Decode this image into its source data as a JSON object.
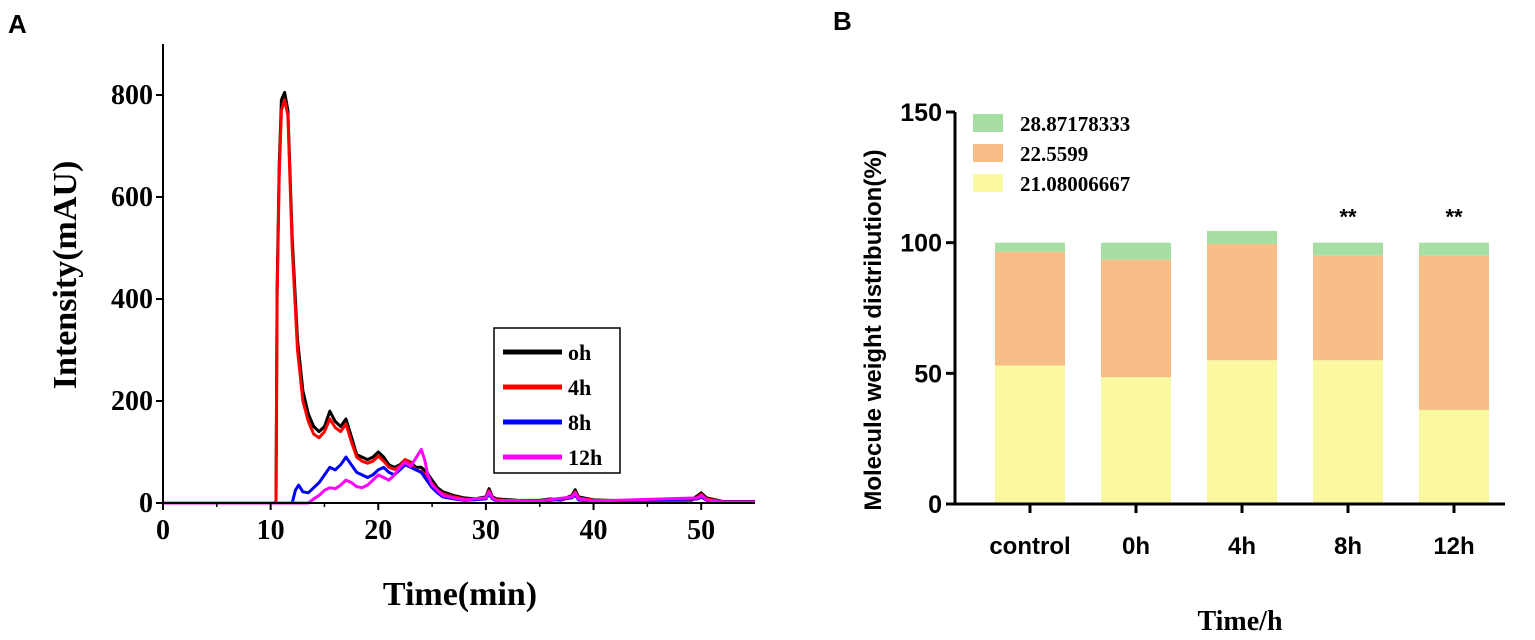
{
  "panels": {
    "a_label": "A",
    "b_label": "B"
  },
  "chart_data": [
    {
      "type": "line",
      "panel": "A",
      "title": "",
      "xlabel": "Time(min)",
      "ylabel": "Intensity(mAU)",
      "xlim": [
        0,
        55
      ],
      "ylim": [
        0,
        900
      ],
      "xticks": [
        "0",
        "10",
        "20",
        "30",
        "40",
        "50"
      ],
      "yticks": [
        "0",
        "200",
        "400",
        "600",
        "800"
      ],
      "grid": false,
      "legend_position": "center-right",
      "series": [
        {
          "name": "oh",
          "color": "#000000",
          "points": [
            [
              0,
              0
            ],
            [
              10.3,
              0
            ],
            [
              10.5,
              3
            ],
            [
              10.6,
              420
            ],
            [
              10.8,
              660
            ],
            [
              11.0,
              790
            ],
            [
              11.3,
              805
            ],
            [
              11.6,
              770
            ],
            [
              12.0,
              520
            ],
            [
              12.5,
              320
            ],
            [
              13.0,
              220
            ],
            [
              13.5,
              175
            ],
            [
              14.0,
              150
            ],
            [
              14.5,
              140
            ],
            [
              15.0,
              150
            ],
            [
              15.5,
              180
            ],
            [
              16.0,
              160
            ],
            [
              16.5,
              150
            ],
            [
              17.0,
              165
            ],
            [
              17.5,
              130
            ],
            [
              18.0,
              95
            ],
            [
              18.5,
              90
            ],
            [
              19.0,
              85
            ],
            [
              19.5,
              90
            ],
            [
              20.0,
              100
            ],
            [
              20.5,
              90
            ],
            [
              21.0,
              75
            ],
            [
              21.5,
              70
            ],
            [
              22.0,
              75
            ],
            [
              22.5,
              85
            ],
            [
              23.0,
              80
            ],
            [
              23.5,
              70
            ],
            [
              24.0,
              70
            ],
            [
              24.5,
              60
            ],
            [
              25.0,
              45
            ],
            [
              25.5,
              30
            ],
            [
              26.0,
              22
            ],
            [
              27.0,
              15
            ],
            [
              28.0,
              10
            ],
            [
              29.0,
              8
            ],
            [
              30.0,
              12
            ],
            [
              30.3,
              28
            ],
            [
              30.6,
              12
            ],
            [
              31.0,
              8
            ],
            [
              33.0,
              5
            ],
            [
              35.0,
              5
            ],
            [
              36.0,
              8
            ],
            [
              37.0,
              6
            ],
            [
              38.0,
              15
            ],
            [
              38.3,
              26
            ],
            [
              38.6,
              12
            ],
            [
              40.0,
              6
            ],
            [
              45.0,
              3
            ],
            [
              49.0,
              5
            ],
            [
              49.7,
              15
            ],
            [
              50.0,
              20
            ],
            [
              50.5,
              10
            ],
            [
              52.0,
              3
            ],
            [
              55.0,
              3
            ]
          ]
        },
        {
          "name": "4h",
          "color": "#ff0000",
          "points": [
            [
              0,
              0
            ],
            [
              10.3,
              0
            ],
            [
              10.5,
              3
            ],
            [
              10.6,
              400
            ],
            [
              10.8,
              640
            ],
            [
              11.0,
              770
            ],
            [
              11.3,
              790
            ],
            [
              11.6,
              760
            ],
            [
              12.0,
              500
            ],
            [
              12.5,
              300
            ],
            [
              13.0,
              200
            ],
            [
              13.5,
              160
            ],
            [
              14.0,
              135
            ],
            [
              14.5,
              128
            ],
            [
              15.0,
              140
            ],
            [
              15.5,
              165
            ],
            [
              16.0,
              148
            ],
            [
              16.5,
              140
            ],
            [
              17.0,
              155
            ],
            [
              17.5,
              120
            ],
            [
              18.0,
              90
            ],
            [
              18.5,
              82
            ],
            [
              19.0,
              78
            ],
            [
              19.5,
              82
            ],
            [
              20.0,
              92
            ],
            [
              20.5,
              82
            ],
            [
              21.0,
              70
            ],
            [
              21.5,
              66
            ],
            [
              22.0,
              72
            ],
            [
              22.5,
              85
            ],
            [
              23.0,
              78
            ],
            [
              23.5,
              65
            ],
            [
              24.0,
              62
            ],
            [
              24.5,
              52
            ],
            [
              25.0,
              38
            ],
            [
              25.5,
              25
            ],
            [
              26.0,
              18
            ],
            [
              27.0,
              12
            ],
            [
              28.0,
              8
            ],
            [
              29.0,
              6
            ],
            [
              30.0,
              10
            ],
            [
              30.3,
              24
            ],
            [
              30.6,
              10
            ],
            [
              31.0,
              6
            ],
            [
              33.0,
              4
            ],
            [
              35.0,
              4
            ],
            [
              36.0,
              7
            ],
            [
              37.0,
              5
            ],
            [
              38.0,
              13
            ],
            [
              38.3,
              22
            ],
            [
              38.6,
              10
            ],
            [
              40.0,
              5
            ],
            [
              45.0,
              2
            ],
            [
              49.0,
              4
            ],
            [
              49.7,
              12
            ],
            [
              50.0,
              17
            ],
            [
              50.5,
              8
            ],
            [
              52.0,
              2
            ],
            [
              55.0,
              2
            ]
          ]
        },
        {
          "name": "8h",
          "color": "#0000ff",
          "points": [
            [
              0,
              0
            ],
            [
              12.0,
              0
            ],
            [
              12.3,
              25
            ],
            [
              12.6,
              35
            ],
            [
              13.0,
              22
            ],
            [
              13.5,
              20
            ],
            [
              14.0,
              30
            ],
            [
              14.5,
              40
            ],
            [
              15.0,
              55
            ],
            [
              15.5,
              70
            ],
            [
              16.0,
              65
            ],
            [
              16.5,
              75
            ],
            [
              17.0,
              90
            ],
            [
              17.5,
              75
            ],
            [
              18.0,
              60
            ],
            [
              18.5,
              55
            ],
            [
              19.0,
              50
            ],
            [
              19.5,
              55
            ],
            [
              20.0,
              65
            ],
            [
              20.5,
              70
            ],
            [
              21.0,
              60
            ],
            [
              21.5,
              55
            ],
            [
              22.0,
              65
            ],
            [
              22.5,
              75
            ],
            [
              23.0,
              70
            ],
            [
              23.5,
              65
            ],
            [
              24.0,
              60
            ],
            [
              24.5,
              45
            ],
            [
              25.0,
              30
            ],
            [
              25.5,
              20
            ],
            [
              26.0,
              12
            ],
            [
              27.0,
              8
            ],
            [
              28.0,
              5
            ],
            [
              30.0,
              8
            ],
            [
              30.3,
              18
            ],
            [
              30.6,
              8
            ],
            [
              31.0,
              4
            ],
            [
              35.0,
              3
            ],
            [
              38.0,
              10
            ],
            [
              38.3,
              16
            ],
            [
              38.6,
              6
            ],
            [
              40.0,
              3
            ],
            [
              49.7,
              8
            ],
            [
              50.0,
              12
            ],
            [
              50.5,
              5
            ],
            [
              52.0,
              2
            ],
            [
              55.0,
              2
            ]
          ]
        },
        {
          "name": "12h",
          "color": "#ff00ff",
          "points": [
            [
              0,
              0
            ],
            [
              13.5,
              0
            ],
            [
              14.0,
              8
            ],
            [
              14.5,
              15
            ],
            [
              15.0,
              25
            ],
            [
              15.5,
              30
            ],
            [
              16.0,
              28
            ],
            [
              16.5,
              35
            ],
            [
              17.0,
              45
            ],
            [
              17.5,
              40
            ],
            [
              18.0,
              32
            ],
            [
              18.5,
              30
            ],
            [
              19.0,
              35
            ],
            [
              19.5,
              45
            ],
            [
              20.0,
              55
            ],
            [
              20.5,
              50
            ],
            [
              21.0,
              45
            ],
            [
              21.5,
              55
            ],
            [
              22.0,
              70
            ],
            [
              22.5,
              80
            ],
            [
              23.0,
              72
            ],
            [
              23.5,
              88
            ],
            [
              24.0,
              105
            ],
            [
              24.3,
              85
            ],
            [
              24.6,
              55
            ],
            [
              25.0,
              35
            ],
            [
              25.5,
              25
            ],
            [
              26.0,
              15
            ],
            [
              27.0,
              10
            ],
            [
              28.0,
              6
            ],
            [
              30.0,
              10
            ],
            [
              30.3,
              22
            ],
            [
              30.6,
              10
            ],
            [
              31.0,
              5
            ],
            [
              35.0,
              4
            ],
            [
              38.0,
              12
            ],
            [
              38.3,
              20
            ],
            [
              38.6,
              8
            ],
            [
              40.0,
              4
            ],
            [
              49.7,
              10
            ],
            [
              50.0,
              15
            ],
            [
              50.5,
              6
            ],
            [
              52.0,
              2
            ],
            [
              55.0,
              2
            ]
          ]
        }
      ]
    },
    {
      "type": "bar",
      "panel": "B",
      "stacked": true,
      "title": "",
      "xlabel": "Time/h",
      "ylabel": "Molecule weight distribution(%)",
      "ylim": [
        0,
        150
      ],
      "yticks": [
        "0",
        "50",
        "100",
        "150"
      ],
      "categories": [
        "control",
        "0h",
        "4h",
        "8h",
        "12h"
      ],
      "annotations": [
        "",
        "",
        "",
        "**",
        "**"
      ],
      "grid": false,
      "legend_position": "top-left",
      "series": [
        {
          "name": "21.08006667",
          "color": "#fbf8a2",
          "values": [
            53,
            48.5,
            55,
            55,
            36
          ]
        },
        {
          "name": "22.5599",
          "color": "#f7be87",
          "values": [
            43.5,
            45,
            44.5,
            40,
            59
          ]
        },
        {
          "name": "28.87178333",
          "color": "#a6dea4",
          "values": [
            3.5,
            6.5,
            5,
            5,
            5
          ]
        }
      ],
      "legend_order": [
        "28.87178333",
        "22.5599",
        "21.08006667"
      ]
    }
  ]
}
